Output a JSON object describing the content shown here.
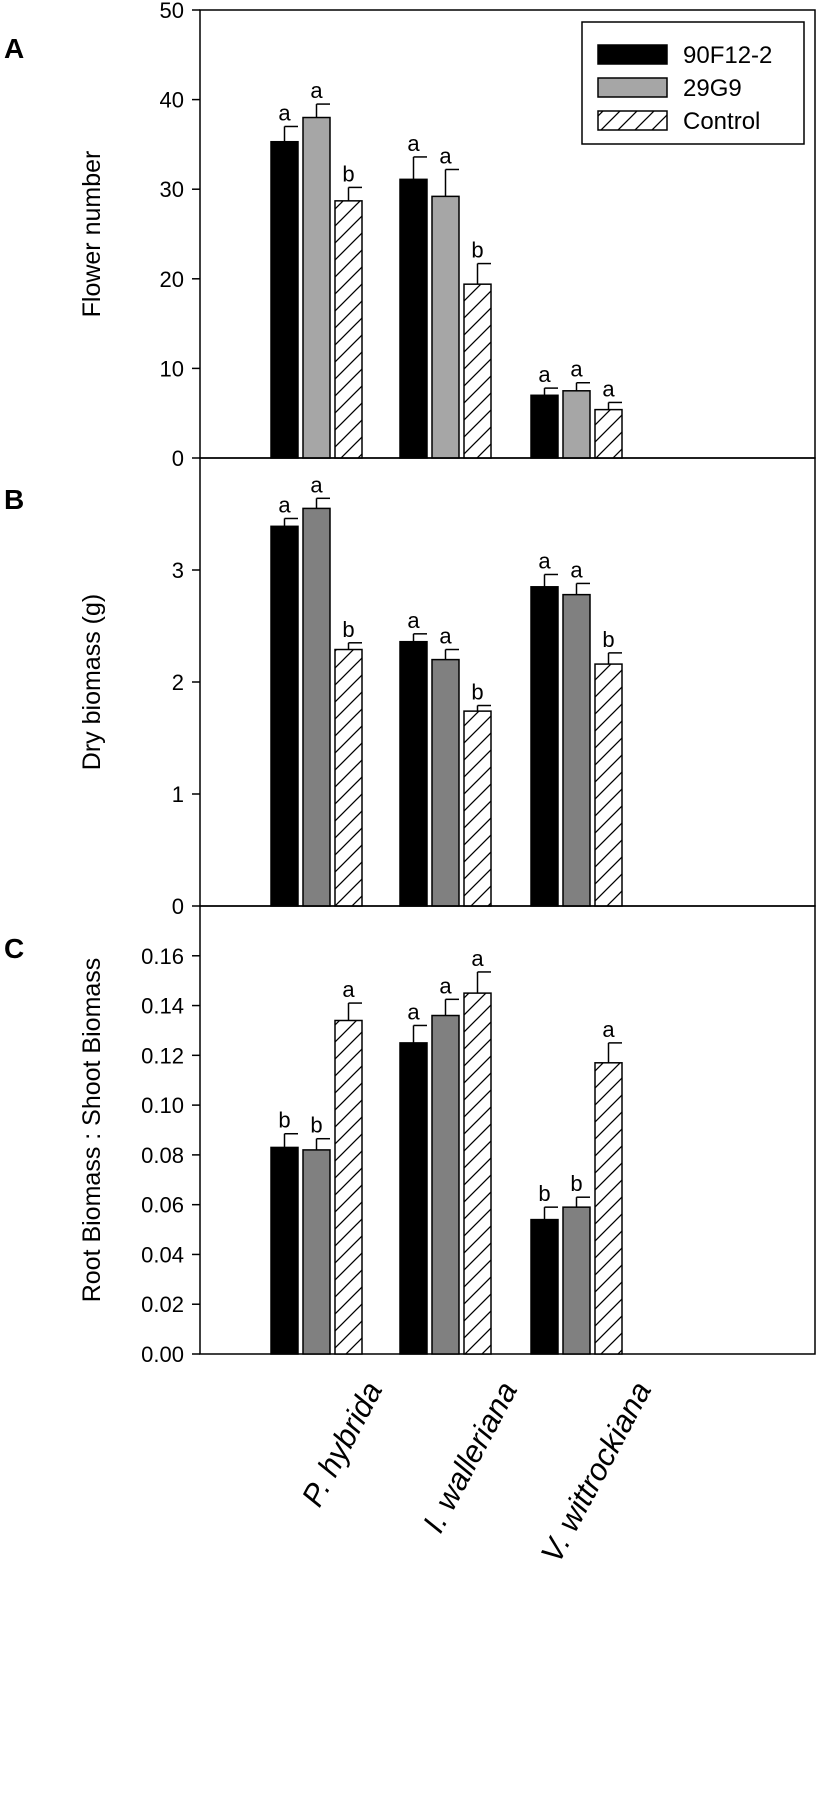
{
  "chart_data": [
    {
      "type": "bar",
      "panel": "A",
      "ylabel": "Flower number",
      "ylim": [
        0,
        50
      ],
      "yticks": [
        "0",
        "10",
        "20",
        "30",
        "40",
        "50"
      ],
      "grid": false,
      "categories": [
        "P. hybrida",
        "I. walleriana",
        "V. wittrockiana"
      ],
      "series": [
        {
          "name": "90F12-2",
          "values": [
            35.3,
            31.1,
            7.0
          ],
          "errors": [
            1.7,
            2.5,
            0.8
          ],
          "letters": [
            "a",
            "a",
            "a"
          ]
        },
        {
          "name": "29G9",
          "values": [
            38.0,
            29.2,
            7.5
          ],
          "errors": [
            1.5,
            3.0,
            0.9
          ],
          "letters": [
            "a",
            "a",
            "a"
          ]
        },
        {
          "name": "Control",
          "values": [
            28.7,
            19.4,
            5.4
          ],
          "errors": [
            1.5,
            2.3,
            0.8
          ],
          "letters": [
            "b",
            "b",
            "a"
          ]
        }
      ],
      "legend": {
        "position": "top-right",
        "entries": [
          "90F12-2",
          "29G9",
          "Control"
        ]
      }
    },
    {
      "type": "bar",
      "panel": "B",
      "ylabel": "Dry biomass (g)",
      "ylim": [
        0,
        4
      ],
      "yticks": [
        "0",
        "1",
        "2",
        "3"
      ],
      "grid": false,
      "categories": [
        "P. hybrida",
        "I. walleriana",
        "V. wittrockiana"
      ],
      "series": [
        {
          "name": "90F12-2",
          "values": [
            3.39,
            2.36,
            2.85
          ],
          "errors": [
            0.07,
            0.07,
            0.11
          ],
          "letters": [
            "a",
            "a",
            "a"
          ]
        },
        {
          "name": "29G9",
          "values": [
            3.55,
            2.2,
            2.78
          ],
          "errors": [
            0.09,
            0.09,
            0.1
          ],
          "letters": [
            "a",
            "a",
            "a"
          ]
        },
        {
          "name": "Control",
          "values": [
            2.29,
            1.74,
            2.16
          ],
          "errors": [
            0.06,
            0.05,
            0.1
          ],
          "letters": [
            "b",
            "b",
            "b"
          ]
        }
      ]
    },
    {
      "type": "bar",
      "panel": "C",
      "ylabel": "Root Biomass : Shoot Biomass",
      "ylim": [
        0,
        0.18
      ],
      "yticks": [
        "0.00",
        "0.02",
        "0.04",
        "0.06",
        "0.08",
        "0.10",
        "0.12",
        "0.14",
        "0.16"
      ],
      "grid": false,
      "categories": [
        "P. hybrida",
        "I. walleriana",
        "V. wittrockiana"
      ],
      "series": [
        {
          "name": "90F12-2",
          "values": [
            0.083,
            0.125,
            0.054
          ],
          "errors": [
            0.0055,
            0.007,
            0.005
          ],
          "letters": [
            "b",
            "a",
            "b"
          ]
        },
        {
          "name": "29G9",
          "values": [
            0.082,
            0.136,
            0.059
          ],
          "errors": [
            0.0045,
            0.0065,
            0.004
          ],
          "letters": [
            "b",
            "a",
            "b"
          ]
        },
        {
          "name": "Control",
          "values": [
            0.134,
            0.145,
            0.117
          ],
          "errors": [
            0.007,
            0.0085,
            0.008
          ],
          "letters": [
            "a",
            "a",
            "a"
          ]
        }
      ],
      "xlabel": ""
    }
  ],
  "colors": {
    "series": [
      "#000000",
      "#a6a6a6",
      "#ffffff"
    ],
    "series_panel_bc": [
      "#000000",
      "#808080",
      "#ffffff"
    ]
  }
}
